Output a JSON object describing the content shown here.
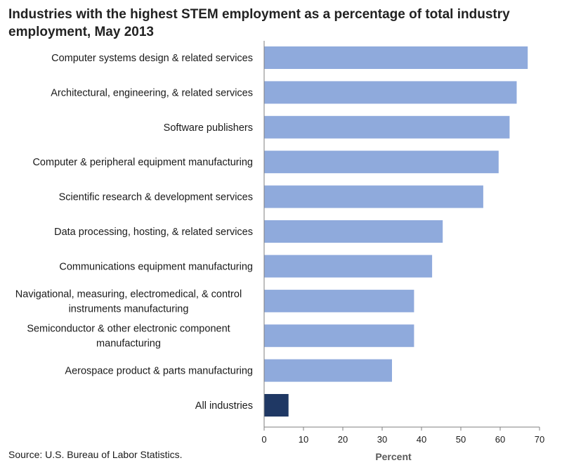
{
  "chart_data": {
    "type": "bar",
    "orientation": "horizontal",
    "title": "Industries with the highest STEM employment as a percentage of total industry employment, May 2013",
    "xlabel": "Percent",
    "ylabel": "",
    "categories": [
      "Computer systems design & related services",
      "Architectural, engineering, & related services",
      "Software publishers",
      "Computer & peripheral equipment manufacturing",
      "Scientific research & development services",
      "Data processing, hosting, & related services",
      "Communications equipment manufacturing",
      "Navigational, measuring, electromedical, & control instruments manufacturing",
      "Semiconductor & other electronic component manufacturing",
      "Aerospace product & parts manufacturing",
      "All industries"
    ],
    "category_lines": [
      [
        "Computer systems design & related services"
      ],
      [
        "Architectural, engineering, & related services"
      ],
      [
        "Software publishers"
      ],
      [
        "Computer & peripheral equipment manufacturing"
      ],
      [
        "Scientific research & development services"
      ],
      [
        "Data processing, hosting, & related services"
      ],
      [
        "Communications equipment manufacturing"
      ],
      [
        "Navigational, measuring, electromedical, & control",
        "instruments manufacturing"
      ],
      [
        "Semiconductor & other electronic component",
        "manufacturing"
      ],
      [
        "Aerospace product & parts manufacturing"
      ],
      [
        "All industries"
      ]
    ],
    "values": [
      67.0,
      64.2,
      62.4,
      59.6,
      55.7,
      45.4,
      42.7,
      38.1,
      38.1,
      32.5,
      6.2
    ],
    "xlim": [
      0,
      70
    ],
    "xticks": [
      0,
      10,
      20,
      30,
      40,
      50,
      60,
      70
    ],
    "grid": false,
    "legend": "none",
    "colors": {
      "bar": "#8faadc",
      "highlight": "#1f3864",
      "axis": "#7f7f7f"
    },
    "highlight_index": 10,
    "source": "Source: U.S. Bureau of Labor Statistics."
  }
}
